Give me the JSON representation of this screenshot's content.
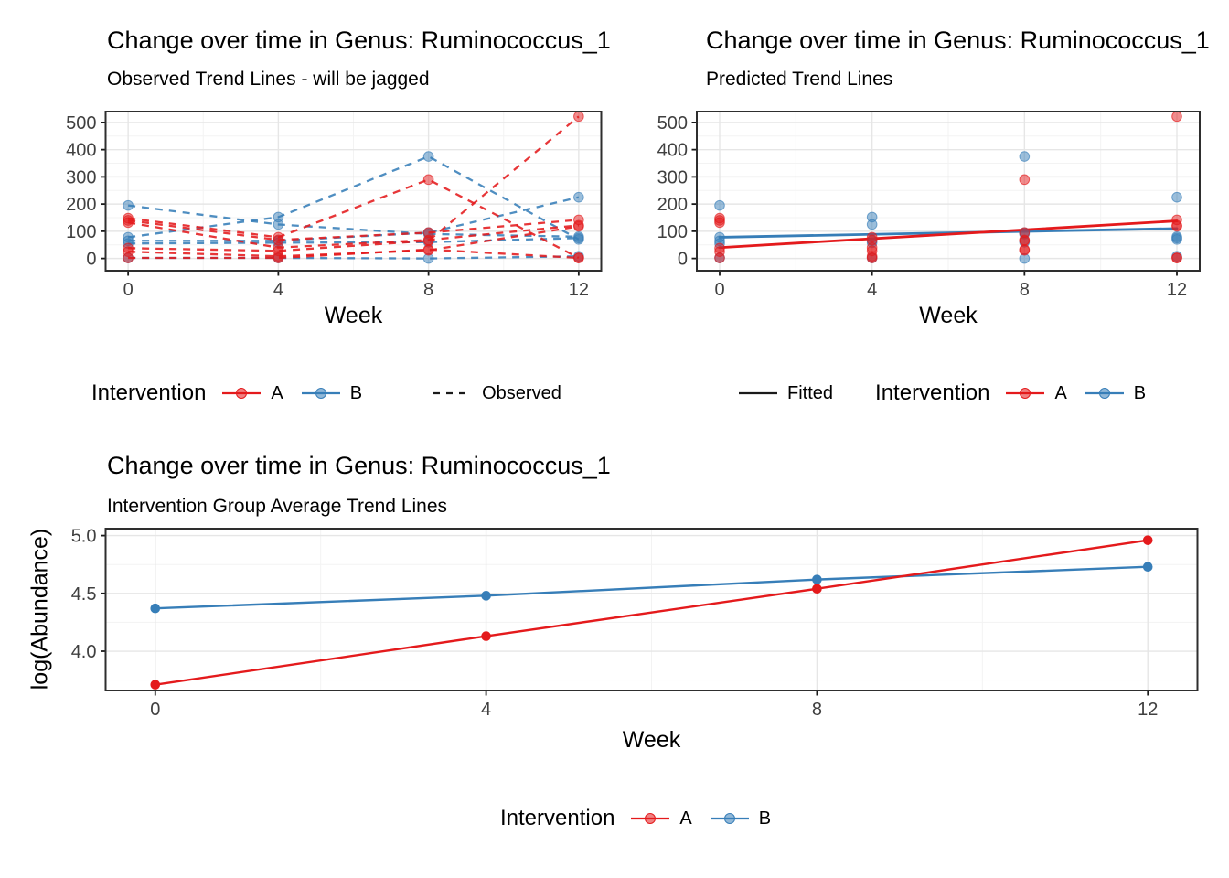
{
  "palette": {
    "a": "#E41A1C",
    "b": "#377EB8",
    "grid_major": "#E6E6E6",
    "grid_minor": "#F3F3F3",
    "panel_border": "#2E2E2E",
    "tick_mark": "#1A1A1A",
    "axis_text": "#404040",
    "legend_line": "#1A1A1A"
  },
  "chart_data": [
    {
      "id": "observed",
      "type": "line",
      "title": "Change over time in Genus: Ruminococcus_1",
      "subtitle": "Observed Trend Lines - will be jagged",
      "xlabel": "Week",
      "ylabel": "",
      "x": [
        0,
        4,
        8,
        12
      ],
      "x_tick_labels": [
        "0",
        "4",
        "8",
        "12"
      ],
      "xlim": [
        -0.6,
        12.6
      ],
      "y_ticks": [
        0,
        100,
        200,
        300,
        400,
        500
      ],
      "y_tick_labels": [
        "0",
        "100",
        "200",
        "300",
        "400",
        "500"
      ],
      "ylim": [
        -45,
        540
      ],
      "grid": true,
      "line_style": "dashed",
      "show_points": true,
      "series": [
        {
          "id": "B1",
          "group": "B",
          "values": [
            195,
            125,
            90,
            80
          ]
        },
        {
          "id": "B2",
          "group": "B",
          "values": [
            78,
            152,
            375,
            70
          ]
        },
        {
          "id": "B3",
          "group": "B",
          "values": [
            65,
            65,
            95,
            225
          ]
        },
        {
          "id": "B4",
          "group": "B",
          "values": [
            55,
            58,
            60,
            75
          ]
        },
        {
          "id": "B5",
          "group": "B",
          "values": [
            2,
            2,
            0,
            8
          ]
        },
        {
          "id": "A1",
          "group": "A",
          "values": [
            148,
            78,
            290,
            2
          ]
        },
        {
          "id": "A2",
          "group": "A",
          "values": [
            38,
            28,
            65,
            522
          ]
        },
        {
          "id": "A3",
          "group": "A",
          "values": [
            140,
            68,
            95,
            142
          ]
        },
        {
          "id": "A4",
          "group": "A",
          "values": [
            132,
            40,
            68,
            122
          ]
        },
        {
          "id": "A5",
          "group": "A",
          "values": [
            25,
            8,
            30,
            118
          ]
        },
        {
          "id": "A6",
          "group": "A",
          "values": [
            2,
            2,
            33,
            2
          ]
        }
      ],
      "legend": {
        "title": "Intervention",
        "items": [
          {
            "label": "A",
            "key": "a"
          },
          {
            "label": "B",
            "key": "b"
          }
        ],
        "linetype": {
          "label": "Observed",
          "key": "dashed"
        }
      }
    },
    {
      "id": "predicted",
      "type": "scatter",
      "title": "Change over time in Genus: Ruminococcus_1",
      "subtitle": "Predicted Trend Lines",
      "xlabel": "Week",
      "ylabel": "",
      "x": [
        0,
        4,
        8,
        12
      ],
      "x_tick_labels": [
        "0",
        "4",
        "8",
        "12"
      ],
      "xlim": [
        -0.6,
        12.6
      ],
      "y_ticks": [
        0,
        100,
        200,
        300,
        400,
        500
      ],
      "y_tick_labels": [
        "0",
        "100",
        "200",
        "300",
        "400",
        "500"
      ],
      "ylim": [
        -45,
        540
      ],
      "grid": true,
      "line_style": "none",
      "show_points": true,
      "series": [
        {
          "id": "B1",
          "group": "B",
          "values": [
            195,
            125,
            90,
            80
          ]
        },
        {
          "id": "B2",
          "group": "B",
          "values": [
            78,
            152,
            375,
            70
          ]
        },
        {
          "id": "B3",
          "group": "B",
          "values": [
            65,
            65,
            95,
            225
          ]
        },
        {
          "id": "B4",
          "group": "B",
          "values": [
            55,
            58,
            60,
            75
          ]
        },
        {
          "id": "B5",
          "group": "B",
          "values": [
            2,
            2,
            0,
            8
          ]
        },
        {
          "id": "A1",
          "group": "A",
          "values": [
            148,
            78,
            290,
            2
          ]
        },
        {
          "id": "A2",
          "group": "A",
          "values": [
            38,
            28,
            65,
            522
          ]
        },
        {
          "id": "A3",
          "group": "A",
          "values": [
            140,
            68,
            95,
            142
          ]
        },
        {
          "id": "A4",
          "group": "A",
          "values": [
            132,
            40,
            68,
            122
          ]
        },
        {
          "id": "A5",
          "group": "A",
          "values": [
            25,
            8,
            30,
            118
          ]
        },
        {
          "id": "A6",
          "group": "A",
          "values": [
            2,
            2,
            33,
            2
          ]
        }
      ],
      "fit_lines": [
        {
          "group": "B",
          "x": [
            0,
            12
          ],
          "values": [
            78,
            110
          ]
        },
        {
          "group": "A",
          "x": [
            0,
            12
          ],
          "values": [
            40,
            138
          ]
        }
      ],
      "legend": {
        "linetype": {
          "label": "Fitted",
          "key": "solid"
        },
        "title": "Intervention",
        "items": [
          {
            "label": "A",
            "key": "a"
          },
          {
            "label": "B",
            "key": "b"
          }
        ]
      }
    },
    {
      "id": "average",
      "type": "line",
      "title": "Change over time in Genus: Ruminococcus_1",
      "subtitle": "Intervention Group Average Trend Lines",
      "xlabel": "Week",
      "ylabel": "log(Abundance)",
      "x": [
        0,
        4,
        8,
        12
      ],
      "x_tick_labels": [
        "0",
        "4",
        "8",
        "12"
      ],
      "xlim": [
        -0.6,
        12.6
      ],
      "y_ticks": [
        4.0,
        4.5,
        5.0
      ],
      "y_tick_labels": [
        "4.0",
        "4.5",
        "5.0"
      ],
      "ylim": [
        3.66,
        5.06
      ],
      "grid": true,
      "line_style": "solid",
      "show_points": true,
      "series": [
        {
          "id": "B",
          "group": "B",
          "values": [
            4.37,
            4.48,
            4.62,
            4.73
          ]
        },
        {
          "id": "A",
          "group": "A",
          "values": [
            3.71,
            4.13,
            4.54,
            4.96
          ]
        }
      ],
      "legend": {
        "title": "Intervention",
        "items": [
          {
            "label": "A",
            "key": "a"
          },
          {
            "label": "B",
            "key": "b"
          }
        ]
      }
    }
  ]
}
